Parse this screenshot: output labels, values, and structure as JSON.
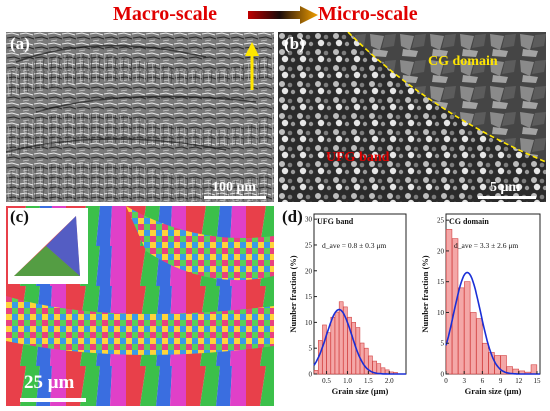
{
  "header": {
    "left": "Macro-scale",
    "right": "Micro-scale"
  },
  "panel_a": {
    "label": "(a)",
    "scale_bar": "100 μm"
  },
  "panel_b": {
    "label": "(b)",
    "region_top": "CG domain",
    "region_bottom": "UFG band",
    "scale_bar": "5 μm"
  },
  "panel_c": {
    "label": "(c)",
    "scale_bar": "25 μm"
  },
  "panel_d": {
    "label": "(d)"
  },
  "colors": {
    "title_red": "#e00000",
    "fit_blue": "#1a2fd6",
    "bar_fill": "#f4a7a7",
    "bar_edge": "#d24040"
  },
  "chart_data": [
    {
      "type": "bar",
      "title": "UFG band",
      "annotation": "d_ave = 0.8 ± 0.3 μm",
      "xlabel": "Grain size (μm)",
      "ylabel": "Number fraction (%)",
      "xlim": [
        0.2,
        2.4
      ],
      "ylim": [
        0,
        31
      ],
      "xticks": [
        "0.5",
        "1.0",
        "1.5",
        "2.0"
      ],
      "yticks": [
        "0",
        "5",
        "10",
        "15",
        "20",
        "25",
        "30"
      ],
      "bin_centers": [
        0.25,
        0.35,
        0.45,
        0.55,
        0.65,
        0.75,
        0.85,
        0.95,
        1.05,
        1.15,
        1.25,
        1.35,
        1.45,
        1.55,
        1.65,
        1.75,
        1.85,
        1.95,
        2.05,
        2.15
      ],
      "values": [
        0.7,
        6.5,
        9.5,
        8,
        11,
        12,
        14,
        13,
        11,
        10,
        9,
        6,
        5,
        3.5,
        2.5,
        2,
        1.2,
        0.8,
        0.4,
        0.3
      ],
      "fit": {
        "shape": "gaussian",
        "mean": 0.8,
        "sd": 0.3,
        "peak": 12.5
      }
    },
    {
      "type": "bar",
      "title": "CG domain",
      "annotation": "d_ave = 3.3 ± 2.6 μm",
      "xlabel": "Grain size (μm)",
      "ylabel": "Number fraction (%)",
      "xlim": [
        0,
        15.5
      ],
      "ylim": [
        0,
        26
      ],
      "xticks": [
        "0",
        "3",
        "6",
        "9",
        "12",
        "15"
      ],
      "yticks": [
        "0",
        "5",
        "10",
        "15",
        "20",
        "25"
      ],
      "bin_centers": [
        0.5,
        1.5,
        2.5,
        3.5,
        4.5,
        5.5,
        6.5,
        7.5,
        8.5,
        9.5,
        10.5,
        11.5,
        12.5,
        13.5,
        14.5
      ],
      "values": [
        23.5,
        22,
        14,
        15,
        10,
        9,
        5,
        3.5,
        3,
        3,
        1.2,
        0.8,
        0.5,
        0.3,
        1.5
      ],
      "fit": {
        "shape": "gaussian",
        "mean": 3.5,
        "sd": 2.2,
        "peak": 16.5
      }
    }
  ]
}
